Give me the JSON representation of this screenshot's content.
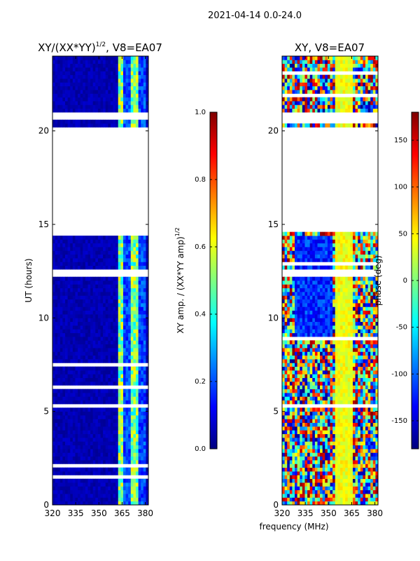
{
  "figure": {
    "suptitle": "2021-04-14 0.0-24.0",
    "xlabel_shared": "frequency (MHz)"
  },
  "colors": {
    "jet_stops": [
      "#00007f",
      "#0000ff",
      "#007fff",
      "#00ffff",
      "#7fff7f",
      "#ffff00",
      "#ff7f00",
      "#ff0000",
      "#7f0000"
    ],
    "axis": "#000000",
    "background": "#ffffff"
  },
  "chart_data": [
    {
      "type": "heatmap",
      "title": "XY/(XX*YY)^{1/2}, V8=EA07",
      "title_main": "XY/(XX*YY)",
      "title_sup": "1/2",
      "title_tail": ", V8=EA07",
      "xlabel": "",
      "ylabel": "UT (hours)",
      "xlim": [
        320,
        382
      ],
      "ylim": [
        0,
        24
      ],
      "xticks": [
        320,
        335,
        350,
        365,
        380
      ],
      "yticks": [
        0,
        5,
        10,
        15,
        20
      ],
      "colorbar": {
        "label": "XY amp. / (XX*YY amp)^{1/2}",
        "label_main": "XY amp. / (XX*YY amp)",
        "label_sup": "1/2",
        "range": [
          0.0,
          1.0
        ],
        "ticks": [
          "0.0",
          "0.2",
          "0.4",
          "0.6",
          "0.8",
          "1.0"
        ]
      },
      "data_gaps_hours": [
        [
          14.6,
          20.2
        ],
        [
          20.6,
          21.0
        ],
        [
          12.2,
          12.5
        ]
      ],
      "pattern": "mostly low amplitude (~0.0) in 320-362 MHz; bright vertical stripes (0.3-0.6) near 362-380 MHz"
    },
    {
      "type": "heatmap",
      "title": "XY, V8=EA07",
      "xlabel": "",
      "ylabel": "",
      "xlim": [
        320,
        382
      ],
      "ylim": [
        0,
        24
      ],
      "xticks": [
        320,
        335,
        350,
        365,
        380
      ],
      "yticks": [
        0,
        5,
        10,
        15,
        20
      ],
      "colorbar": {
        "label": "phase (deg)",
        "range": [
          -180,
          180
        ],
        "ticks": [
          "-150",
          "-100",
          "-50",
          "0",
          "50",
          "100",
          "150"
        ]
      },
      "data_gaps_hours": [
        [
          14.6,
          20.2
        ],
        [
          20.6,
          21.0
        ],
        [
          12.2,
          12.5
        ]
      ],
      "pattern": "noisy phase across band; coherent band near 355-365 MHz around +40 deg; low phase (~-120 deg) near 330-350 MHz from 9-14 h"
    }
  ]
}
